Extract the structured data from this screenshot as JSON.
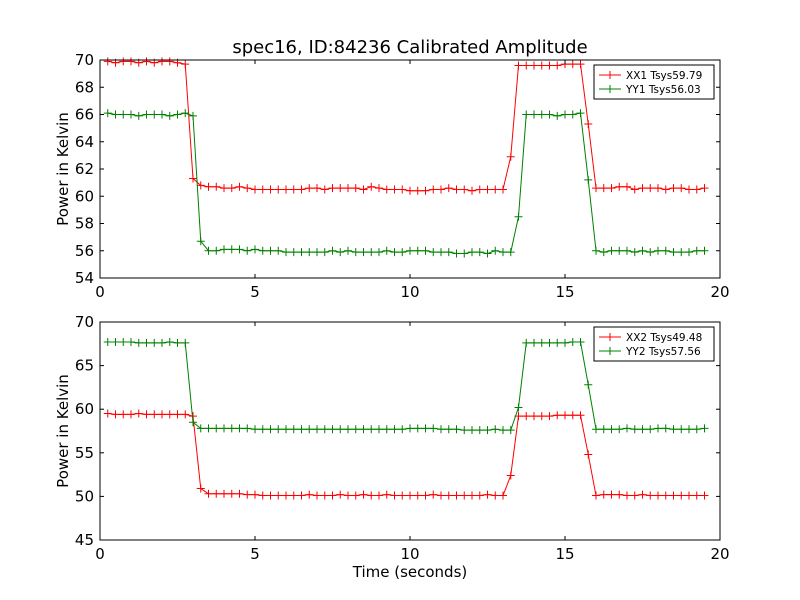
{
  "figure": {
    "title": "spec16, ID:84236 Calibrated Amplitude"
  },
  "colors": {
    "series1": "#ff0000",
    "series2": "#008000",
    "axes": "#000000",
    "background": "#ffffff"
  },
  "chart_data": [
    {
      "type": "line",
      "title": "spec16, ID:84236 Calibrated Amplitude",
      "xlabel": "",
      "ylabel": "Power in Kelvin",
      "xlim": [
        0,
        20
      ],
      "ylim": [
        54,
        70
      ],
      "xticks": [
        0,
        5,
        10,
        15,
        20
      ],
      "yticks": [
        54,
        56,
        58,
        60,
        62,
        64,
        66,
        68,
        70
      ],
      "grid": false,
      "legend": "top-right",
      "marker": "+",
      "x": [
        0.25,
        0.5,
        0.75,
        1.0,
        1.25,
        1.5,
        1.75,
        2.0,
        2.25,
        2.5,
        2.75,
        3.0,
        3.25,
        3.5,
        3.75,
        4.0,
        4.25,
        4.5,
        4.75,
        5.0,
        5.25,
        5.5,
        5.75,
        6.0,
        6.25,
        6.5,
        6.75,
        7.0,
        7.25,
        7.5,
        7.75,
        8.0,
        8.25,
        8.5,
        8.75,
        9.0,
        9.25,
        9.5,
        9.75,
        10.0,
        10.25,
        10.5,
        10.75,
        11.0,
        11.25,
        11.5,
        11.75,
        12.0,
        12.25,
        12.5,
        12.75,
        13.0,
        13.25,
        13.5,
        13.75,
        14.0,
        14.25,
        14.5,
        14.75,
        15.0,
        15.25,
        15.5,
        15.75,
        16.0,
        16.25,
        16.5,
        16.75,
        17.0,
        17.25,
        17.5,
        17.75,
        18.0,
        18.25,
        18.5,
        18.75,
        19.0,
        19.25,
        19.5
      ],
      "series": [
        {
          "name": "XX1 Tsys59.79",
          "color": "#ff0000",
          "values": [
            69.9,
            69.8,
            69.9,
            69.9,
            69.8,
            69.9,
            69.8,
            69.9,
            69.9,
            69.8,
            69.7,
            61.3,
            60.8,
            60.7,
            60.7,
            60.6,
            60.6,
            60.7,
            60.6,
            60.5,
            60.5,
            60.5,
            60.5,
            60.5,
            60.5,
            60.5,
            60.6,
            60.6,
            60.5,
            60.6,
            60.6,
            60.6,
            60.6,
            60.5,
            60.7,
            60.6,
            60.5,
            60.5,
            60.5,
            60.4,
            60.4,
            60.4,
            60.5,
            60.5,
            60.6,
            60.5,
            60.5,
            60.4,
            60.5,
            60.5,
            60.5,
            60.5,
            62.9,
            69.6,
            69.6,
            69.6,
            69.6,
            69.6,
            69.6,
            69.7,
            69.7,
            69.7,
            65.3,
            60.6,
            60.6,
            60.6,
            60.7,
            60.7,
            60.5,
            60.6,
            60.6,
            60.6,
            60.5,
            60.6,
            60.6,
            60.5,
            60.5,
            60.6
          ]
        },
        {
          "name": "YY1 Tsys56.03",
          "color": "#008000",
          "values": [
            66.1,
            66.0,
            66.0,
            66.0,
            65.9,
            66.0,
            66.0,
            66.0,
            65.9,
            66.0,
            66.1,
            65.9,
            56.7,
            56.0,
            56.0,
            56.1,
            56.1,
            56.1,
            56.0,
            56.1,
            56.0,
            56.0,
            56.0,
            55.9,
            55.9,
            55.9,
            55.9,
            55.9,
            55.9,
            56.0,
            55.9,
            56.0,
            55.9,
            55.9,
            55.9,
            55.9,
            56.0,
            55.9,
            55.9,
            56.0,
            56.0,
            56.0,
            55.9,
            55.9,
            55.9,
            55.8,
            55.8,
            55.9,
            55.9,
            55.8,
            56.0,
            55.9,
            55.9,
            58.5,
            66.0,
            66.0,
            66.0,
            66.0,
            65.9,
            66.0,
            66.0,
            66.1,
            61.2,
            56.0,
            55.9,
            56.0,
            56.0,
            56.0,
            55.9,
            56.0,
            55.9,
            56.0,
            56.0,
            55.9,
            55.9,
            55.9,
            56.0,
            56.0
          ]
        }
      ]
    },
    {
      "type": "line",
      "title": "",
      "xlabel": "Time (seconds)",
      "ylabel": "Power in Kelvin",
      "xlim": [
        0,
        20
      ],
      "ylim": [
        45,
        70
      ],
      "xticks": [
        0,
        5,
        10,
        15,
        20
      ],
      "yticks": [
        45,
        50,
        55,
        60,
        65,
        70
      ],
      "grid": false,
      "legend": "top-right",
      "marker": "+",
      "x": [
        0.25,
        0.5,
        0.75,
        1.0,
        1.25,
        1.5,
        1.75,
        2.0,
        2.25,
        2.5,
        2.75,
        3.0,
        3.25,
        3.5,
        3.75,
        4.0,
        4.25,
        4.5,
        4.75,
        5.0,
        5.25,
        5.5,
        5.75,
        6.0,
        6.25,
        6.5,
        6.75,
        7.0,
        7.25,
        7.5,
        7.75,
        8.0,
        8.25,
        8.5,
        8.75,
        9.0,
        9.25,
        9.5,
        9.75,
        10.0,
        10.25,
        10.5,
        10.75,
        11.0,
        11.25,
        11.5,
        11.75,
        12.0,
        12.25,
        12.5,
        12.75,
        13.0,
        13.25,
        13.5,
        13.75,
        14.0,
        14.25,
        14.5,
        14.75,
        15.0,
        15.25,
        15.5,
        15.75,
        16.0,
        16.25,
        16.5,
        16.75,
        17.0,
        17.25,
        17.5,
        17.75,
        18.0,
        18.25,
        18.5,
        18.75,
        19.0,
        19.25,
        19.5
      ],
      "series": [
        {
          "name": "XX2 Tsys49.48",
          "color": "#ff0000",
          "values": [
            59.5,
            59.4,
            59.4,
            59.4,
            59.5,
            59.4,
            59.4,
            59.4,
            59.4,
            59.4,
            59.4,
            59.2,
            50.9,
            50.3,
            50.3,
            50.3,
            50.3,
            50.3,
            50.2,
            50.2,
            50.1,
            50.1,
            50.1,
            50.1,
            50.1,
            50.1,
            50.2,
            50.1,
            50.1,
            50.1,
            50.2,
            50.1,
            50.1,
            50.2,
            50.1,
            50.1,
            50.2,
            50.1,
            50.1,
            50.1,
            50.1,
            50.1,
            50.2,
            50.1,
            50.1,
            50.1,
            50.1,
            50.1,
            50.1,
            50.2,
            50.1,
            50.1,
            52.4,
            59.2,
            59.2,
            59.2,
            59.2,
            59.2,
            59.3,
            59.3,
            59.3,
            59.3,
            54.8,
            50.1,
            50.2,
            50.2,
            50.2,
            50.1,
            50.1,
            50.2,
            50.1,
            50.1,
            50.1,
            50.1,
            50.1,
            50.1,
            50.1,
            50.1
          ]
        },
        {
          "name": "YY2 Tsys57.56",
          "color": "#008000",
          "values": [
            67.7,
            67.7,
            67.7,
            67.7,
            67.6,
            67.6,
            67.6,
            67.6,
            67.7,
            67.6,
            67.6,
            58.5,
            57.8,
            57.8,
            57.8,
            57.8,
            57.8,
            57.8,
            57.8,
            57.7,
            57.7,
            57.7,
            57.7,
            57.7,
            57.7,
            57.7,
            57.7,
            57.7,
            57.7,
            57.7,
            57.7,
            57.7,
            57.7,
            57.7,
            57.7,
            57.7,
            57.7,
            57.7,
            57.7,
            57.8,
            57.8,
            57.8,
            57.8,
            57.7,
            57.7,
            57.7,
            57.6,
            57.6,
            57.6,
            57.6,
            57.7,
            57.6,
            57.6,
            60.2,
            67.6,
            67.6,
            67.6,
            67.6,
            67.6,
            67.6,
            67.7,
            67.7,
            62.8,
            57.7,
            57.7,
            57.7,
            57.7,
            57.8,
            57.7,
            57.7,
            57.7,
            57.8,
            57.8,
            57.7,
            57.7,
            57.7,
            57.7,
            57.8
          ]
        }
      ]
    }
  ]
}
